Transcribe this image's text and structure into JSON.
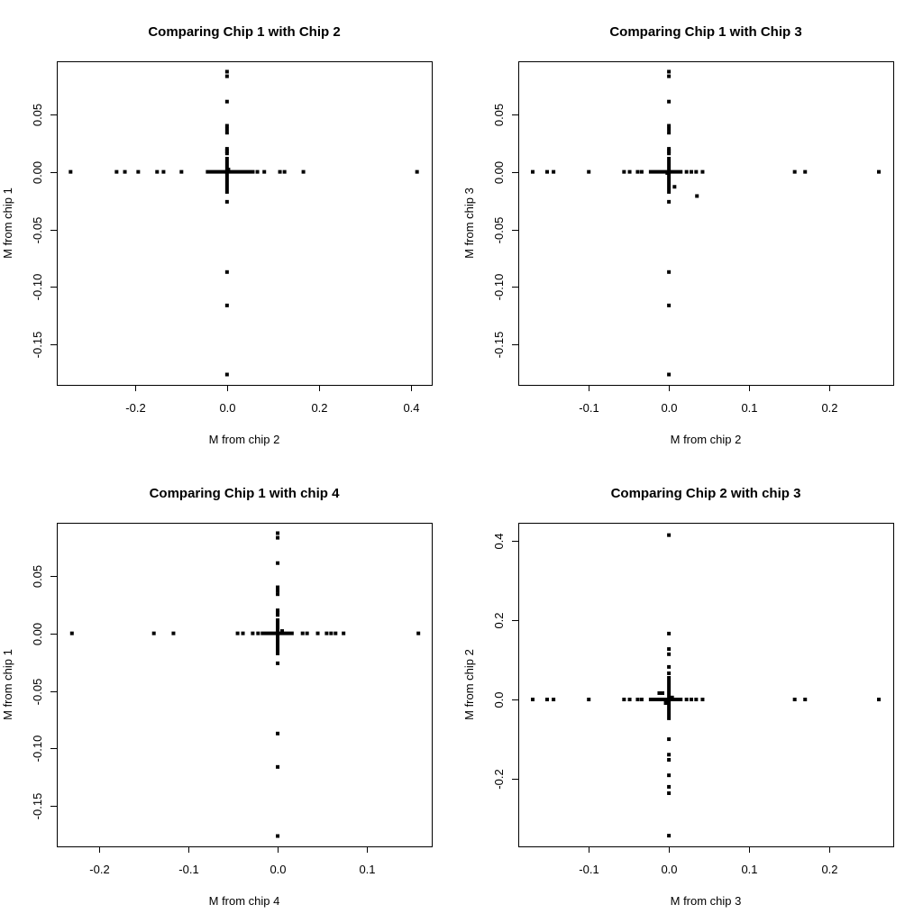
{
  "chart_data": [
    {
      "type": "scatter",
      "title": "Comparing Chip 1 with Chip 2",
      "xlabel": "M from chip 2",
      "ylabel": "M from chip 1",
      "xlim": [
        -0.37,
        0.445
      ],
      "ylim": [
        -0.185,
        0.096
      ],
      "xticks": [
        -0.2,
        0.0,
        0.2,
        0.4
      ],
      "xtick_labels": [
        "-0.2",
        "0.0",
        "0.2",
        "0.4"
      ],
      "yticks": [
        -0.15,
        -0.1,
        -0.05,
        0.0,
        0.05
      ],
      "ytick_labels": [
        "-0.15",
        "-0.10",
        "-0.05",
        "0.00",
        "0.05"
      ],
      "grid": false,
      "dense_segments": [
        {
          "axis": "x",
          "from": -0.046,
          "to": 0.06
        },
        {
          "axis": "y",
          "from": -0.019,
          "to": 0.013
        }
      ],
      "points": [
        [
          -0.34,
          0
        ],
        [
          -0.24,
          0
        ],
        [
          -0.222,
          0
        ],
        [
          -0.193,
          0
        ],
        [
          -0.152,
          0
        ],
        [
          -0.138,
          0
        ],
        [
          -0.099,
          0
        ],
        [
          0.066,
          0
        ],
        [
          0.081,
          0
        ],
        [
          0.115,
          0
        ],
        [
          0.125,
          0
        ],
        [
          0.166,
          0
        ],
        [
          0.413,
          0
        ],
        [
          0,
          0.087
        ],
        [
          0,
          0.083
        ],
        [
          0,
          0.061
        ],
        [
          0,
          0.04
        ],
        [
          0,
          0.037
        ],
        [
          0,
          0.034
        ],
        [
          0,
          0.02
        ],
        [
          0,
          0.018
        ],
        [
          0,
          0.016
        ],
        [
          0,
          -0.026
        ],
        [
          0,
          -0.087
        ],
        [
          0,
          -0.116
        ],
        [
          0,
          -0.176
        ],
        [
          0.003,
          0.002
        ]
      ]
    },
    {
      "type": "scatter",
      "title": "Comparing Chip 1 with Chip 3",
      "xlabel": "M from chip 2",
      "ylabel": "M from chip 3",
      "xlim": [
        -0.188,
        0.28
      ],
      "ylim": [
        -0.185,
        0.096
      ],
      "xticks": [
        -0.1,
        0.0,
        0.1,
        0.2
      ],
      "xtick_labels": [
        "-0.1",
        "0.0",
        "0.1",
        "0.2"
      ],
      "yticks": [
        -0.15,
        -0.1,
        -0.05,
        0.0,
        0.05
      ],
      "ytick_labels": [
        "-0.15",
        "-0.10",
        "-0.05",
        "0.00",
        "0.05"
      ],
      "grid": false,
      "dense_segments": [
        {
          "axis": "x",
          "from": -0.025,
          "to": 0.017
        },
        {
          "axis": "y",
          "from": -0.019,
          "to": 0.013
        }
      ],
      "points": [
        [
          -0.17,
          0
        ],
        [
          -0.152,
          0
        ],
        [
          -0.144,
          0
        ],
        [
          -0.1,
          0
        ],
        [
          -0.056,
          0
        ],
        [
          -0.049,
          0
        ],
        [
          -0.039,
          0
        ],
        [
          -0.034,
          0
        ],
        [
          0.022,
          0
        ],
        [
          0.028,
          0
        ],
        [
          0.034,
          0
        ],
        [
          0.042,
          0
        ],
        [
          0.157,
          0
        ],
        [
          0.17,
          0
        ],
        [
          0.262,
          0
        ],
        [
          0,
          0.087
        ],
        [
          0,
          0.083
        ],
        [
          0,
          0.061
        ],
        [
          0,
          0.04
        ],
        [
          0,
          0.037
        ],
        [
          0,
          0.034
        ],
        [
          0,
          0.02
        ],
        [
          0,
          0.018
        ],
        [
          0,
          0.016
        ],
        [
          0,
          -0.026
        ],
        [
          0,
          -0.087
        ],
        [
          0,
          -0.116
        ],
        [
          0,
          -0.176
        ],
        [
          0.007,
          -0.013
        ],
        [
          0.035,
          -0.021
        ],
        [
          -0.002,
          -0.001
        ]
      ]
    },
    {
      "type": "scatter",
      "title": "Comparing Chip 1 with chip 4",
      "xlabel": "M from chip 4",
      "ylabel": "M from chip 1",
      "xlim": [
        -0.248,
        0.173
      ],
      "ylim": [
        -0.185,
        0.096
      ],
      "xticks": [
        -0.2,
        -0.1,
        0.0,
        0.1
      ],
      "xtick_labels": [
        "-0.2",
        "-0.1",
        "0.0",
        "0.1"
      ],
      "yticks": [
        -0.15,
        -0.1,
        -0.05,
        0.0,
        0.05
      ],
      "ytick_labels": [
        "-0.15",
        "-0.10",
        "-0.05",
        "0.00",
        "0.05"
      ],
      "grid": false,
      "dense_segments": [
        {
          "axis": "x",
          "from": -0.019,
          "to": 0.018
        },
        {
          "axis": "y",
          "from": -0.019,
          "to": 0.013
        }
      ],
      "points": [
        [
          -0.231,
          0
        ],
        [
          -0.139,
          0
        ],
        [
          -0.117,
          0
        ],
        [
          -0.045,
          0
        ],
        [
          -0.039,
          0
        ],
        [
          -0.028,
          0
        ],
        [
          -0.022,
          0
        ],
        [
          0.028,
          0
        ],
        [
          0.033,
          0
        ],
        [
          0.045,
          0
        ],
        [
          0.055,
          0
        ],
        [
          0.06,
          0
        ],
        [
          0.065,
          0
        ],
        [
          0.074,
          0
        ],
        [
          0.158,
          0
        ],
        [
          0,
          0.087
        ],
        [
          0,
          0.083
        ],
        [
          0,
          0.061
        ],
        [
          0,
          0.04
        ],
        [
          0,
          0.037
        ],
        [
          0,
          0.034
        ],
        [
          0,
          0.02
        ],
        [
          0,
          0.018
        ],
        [
          0,
          0.016
        ],
        [
          0,
          -0.026
        ],
        [
          0,
          -0.087
        ],
        [
          0,
          -0.116
        ],
        [
          0,
          -0.176
        ],
        [
          0.005,
          0.002
        ]
      ]
    },
    {
      "type": "scatter",
      "title": "Comparing Chip 2 with chip 3",
      "xlabel": "M from chip 3",
      "ylabel": "M from chip 2",
      "xlim": [
        -0.188,
        0.28
      ],
      "ylim": [
        -0.37,
        0.445
      ],
      "xticks": [
        -0.1,
        0.0,
        0.1,
        0.2
      ],
      "xtick_labels": [
        "-0.1",
        "0.0",
        "0.1",
        "0.2"
      ],
      "yticks": [
        -0.2,
        0.0,
        0.2,
        0.4
      ],
      "ytick_labels": [
        "-0.2",
        "0.0",
        "0.2",
        "0.4"
      ],
      "grid": false,
      "dense_segments": [
        {
          "axis": "x",
          "from": -0.025,
          "to": 0.017
        },
        {
          "axis": "y",
          "from": -0.052,
          "to": 0.059
        }
      ],
      "points": [
        [
          -0.17,
          0
        ],
        [
          -0.152,
          0
        ],
        [
          -0.144,
          0
        ],
        [
          -0.1,
          0
        ],
        [
          -0.056,
          0
        ],
        [
          -0.049,
          0
        ],
        [
          -0.039,
          0
        ],
        [
          -0.034,
          0
        ],
        [
          0.022,
          0
        ],
        [
          0.028,
          0
        ],
        [
          0.034,
          0
        ],
        [
          0.042,
          0
        ],
        [
          0.157,
          0
        ],
        [
          0.17,
          0
        ],
        [
          0.262,
          0
        ],
        [
          0,
          0.414
        ],
        [
          0,
          0.166
        ],
        [
          0,
          0.127
        ],
        [
          0,
          0.114
        ],
        [
          0,
          0.082
        ],
        [
          0,
          0.066
        ],
        [
          0,
          -0.1
        ],
        [
          0,
          -0.139
        ],
        [
          0,
          -0.152
        ],
        [
          0,
          -0.191
        ],
        [
          0,
          -0.22
        ],
        [
          0,
          -0.236
        ],
        [
          0,
          -0.343
        ],
        [
          -0.012,
          0.016
        ],
        [
          -0.008,
          0.016
        ],
        [
          -0.004,
          -0.009
        ],
        [
          0.004,
          0.005
        ]
      ]
    }
  ]
}
